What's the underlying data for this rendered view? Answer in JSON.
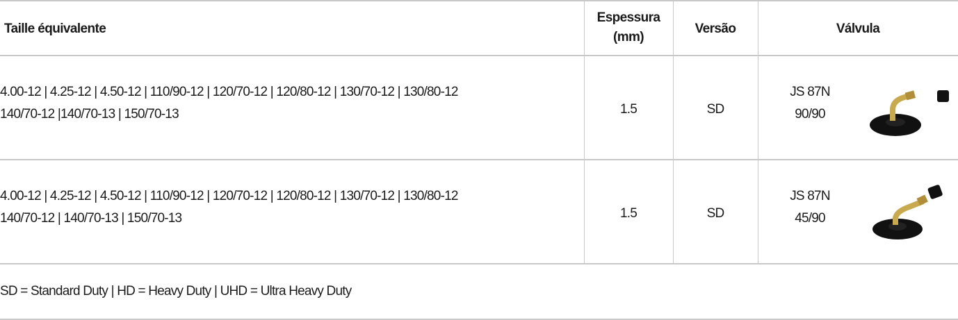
{
  "headers": {
    "size": "Taille équivalente",
    "thickness_line1": "Espessura",
    "thickness_line2": "(mm)",
    "version": "Versão",
    "valve": "Válvula"
  },
  "rows": [
    {
      "sizes_line1": "4.00-12 | 4.25-12 | 4.50-12 | 110/90-12 | 120/70-12 | 120/80-12 | 130/70-12 | 130/80-12",
      "sizes_line2": "140/70-12 |140/70-13 | 150/70-13",
      "thickness": "1.5",
      "version": "SD",
      "valve_line1": "JS 87N",
      "valve_line2": "90/90",
      "valve_icon": "valve-90-90-icon"
    },
    {
      "sizes_line1": "4.00-12 | 4.25-12 | 4.50-12 | 110/90-12 | 120/70-12 | 120/80-12 | 130/70-12 | 130/80-12",
      "sizes_line2": "140/70-12 | 140/70-13 | 150/70-13",
      "thickness": "1.5",
      "version": "SD",
      "valve_line1": "JS 87N",
      "valve_line2": "45/90",
      "valve_icon": "valve-45-90-icon"
    }
  ],
  "footnote": "SD = Standard Duty | HD = Heavy Duty | UHD = Ultra Heavy Duty"
}
